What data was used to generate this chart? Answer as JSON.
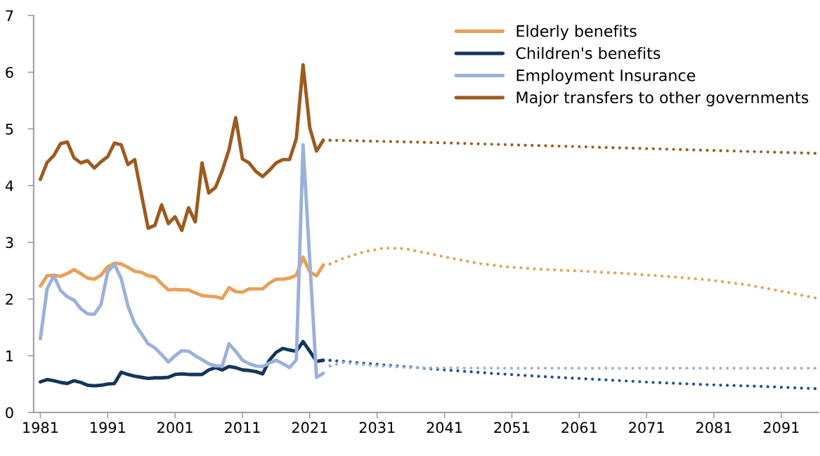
{
  "chart_data": {
    "type": "line",
    "x": [
      1981,
      1982,
      1983,
      1984,
      1985,
      1986,
      1987,
      1988,
      1989,
      1990,
      1991,
      1992,
      1993,
      1994,
      1995,
      1996,
      1997,
      1998,
      1999,
      2000,
      2001,
      2002,
      2003,
      2004,
      2005,
      2006,
      2007,
      2008,
      2009,
      2010,
      2011,
      2012,
      2013,
      2014,
      2015,
      2016,
      2017,
      2018,
      2019,
      2020,
      2021,
      2022,
      2023
    ],
    "series": [
      {
        "name": "Elderly benefits",
        "color": "#e8a057",
        "values": [
          2.23,
          2.41,
          2.42,
          2.4,
          2.45,
          2.52,
          2.45,
          2.37,
          2.35,
          2.42,
          2.57,
          2.63,
          2.62,
          2.56,
          2.49,
          2.47,
          2.41,
          2.39,
          2.27,
          2.16,
          2.17,
          2.16,
          2.16,
          2.11,
          2.06,
          2.05,
          2.04,
          2.01,
          2.2,
          2.13,
          2.12,
          2.18,
          2.18,
          2.18,
          2.28,
          2.35,
          2.35,
          2.37,
          2.42,
          2.74,
          2.48,
          2.41,
          2.6
        ]
      },
      {
        "name": "Children's benefits",
        "color": "#14365a",
        "values": [
          0.54,
          0.58,
          0.56,
          0.53,
          0.51,
          0.56,
          0.53,
          0.48,
          0.47,
          0.48,
          0.5,
          0.51,
          0.71,
          0.67,
          0.64,
          0.62,
          0.6,
          0.61,
          0.61,
          0.62,
          0.67,
          0.68,
          0.67,
          0.67,
          0.67,
          0.75,
          0.79,
          0.75,
          0.81,
          0.79,
          0.75,
          0.74,
          0.72,
          0.68,
          0.92,
          1.06,
          1.13,
          1.1,
          1.08,
          1.25,
          1.08,
          0.9,
          0.92
        ]
      },
      {
        "name": "Employment Insurance",
        "color": "#9bb1da",
        "values": [
          1.3,
          2.18,
          2.41,
          2.15,
          2.04,
          1.98,
          1.83,
          1.74,
          1.73,
          1.9,
          2.48,
          2.61,
          2.36,
          1.88,
          1.57,
          1.39,
          1.21,
          1.14,
          1.02,
          0.89,
          1.0,
          1.09,
          1.08,
          1.0,
          0.93,
          0.86,
          0.82,
          0.82,
          1.21,
          1.08,
          0.92,
          0.86,
          0.82,
          0.81,
          0.87,
          0.92,
          0.86,
          0.79,
          0.93,
          4.72,
          2.67,
          0.62,
          0.69
        ]
      },
      {
        "name": "Major transfers to other governments",
        "color": "#9c5b1f",
        "values": [
          4.11,
          4.41,
          4.53,
          4.74,
          4.77,
          4.49,
          4.4,
          4.44,
          4.31,
          4.42,
          4.51,
          4.75,
          4.72,
          4.37,
          4.46,
          3.85,
          3.25,
          3.3,
          3.66,
          3.33,
          3.45,
          3.21,
          3.61,
          3.36,
          4.4,
          3.87,
          3.97,
          4.26,
          4.63,
          5.2,
          4.47,
          4.4,
          4.25,
          4.16,
          4.27,
          4.4,
          4.46,
          4.46,
          4.83,
          6.13,
          5.02,
          4.61,
          4.8
        ]
      },
      {
        "color": "#e8a057",
        "line_style": "dotted",
        "x": [
          2024,
          2026,
          2029,
          2032,
          2035,
          2038,
          2042,
          2046,
          2050,
          2056,
          2062,
          2068,
          2074,
          2080,
          2086,
          2091,
          2096
        ],
        "values": [
          2.62,
          2.72,
          2.83,
          2.9,
          2.89,
          2.82,
          2.72,
          2.63,
          2.57,
          2.52,
          2.49,
          2.45,
          2.4,
          2.34,
          2.25,
          2.14,
          2.02
        ]
      },
      {
        "color": "#1f4e8c",
        "line_style": "dotted",
        "x": [
          2024,
          2028,
          2034,
          2040,
          2048,
          2056,
          2064,
          2072,
          2080,
          2088,
          2096
        ],
        "values": [
          0.92,
          0.88,
          0.82,
          0.76,
          0.69,
          0.63,
          0.58,
          0.53,
          0.49,
          0.46,
          0.42
        ]
      },
      {
        "color": "#9bb1da",
        "line_style": "dotted",
        "x": [
          2024,
          2026,
          2030,
          2036,
          2050,
          2096
        ],
        "values": [
          0.82,
          0.88,
          0.83,
          0.79,
          0.78,
          0.78
        ]
      },
      {
        "color": "#9c5b1f",
        "line_style": "dotted",
        "x": [
          2024,
          2036,
          2048,
          2060,
          2072,
          2084,
          2096
        ],
        "values": [
          4.8,
          4.77,
          4.73,
          4.69,
          4.65,
          4.61,
          4.57
        ]
      }
    ],
    "xlim": [
      1980,
      2096.5
    ],
    "xticks": [
      1981,
      1991,
      2001,
      2011,
      2021,
      2031,
      2041,
      2051,
      2061,
      2071,
      2081,
      2091
    ],
    "ylim": [
      0,
      7
    ],
    "yticks": [
      0,
      1,
      2,
      3,
      4,
      5,
      6,
      7
    ],
    "grid": false,
    "legend": "top right",
    "line_style": "solid",
    "marker": "none"
  }
}
